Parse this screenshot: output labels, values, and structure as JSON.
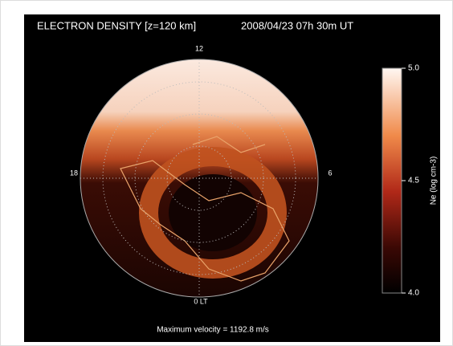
{
  "figure": {
    "title": "ELECTRON DENSITY [z=120 km]",
    "timestamp": "2008/04/23 07h 30m UT",
    "local_time_labels": {
      "top": "12",
      "left": "18",
      "right": "6",
      "bottom": "0 LT"
    },
    "colorbar": {
      "label": "Ne (log cm-3)",
      "lim": [
        4.0,
        5.0
      ],
      "ticks": [
        {
          "value": 4,
          "label": "4.0"
        },
        {
          "value": 4.5,
          "label": "4.5"
        },
        {
          "value": 5,
          "label": "5.0"
        }
      ]
    },
    "footer": "Maximum velocity = 1192.8 m/s"
  }
}
